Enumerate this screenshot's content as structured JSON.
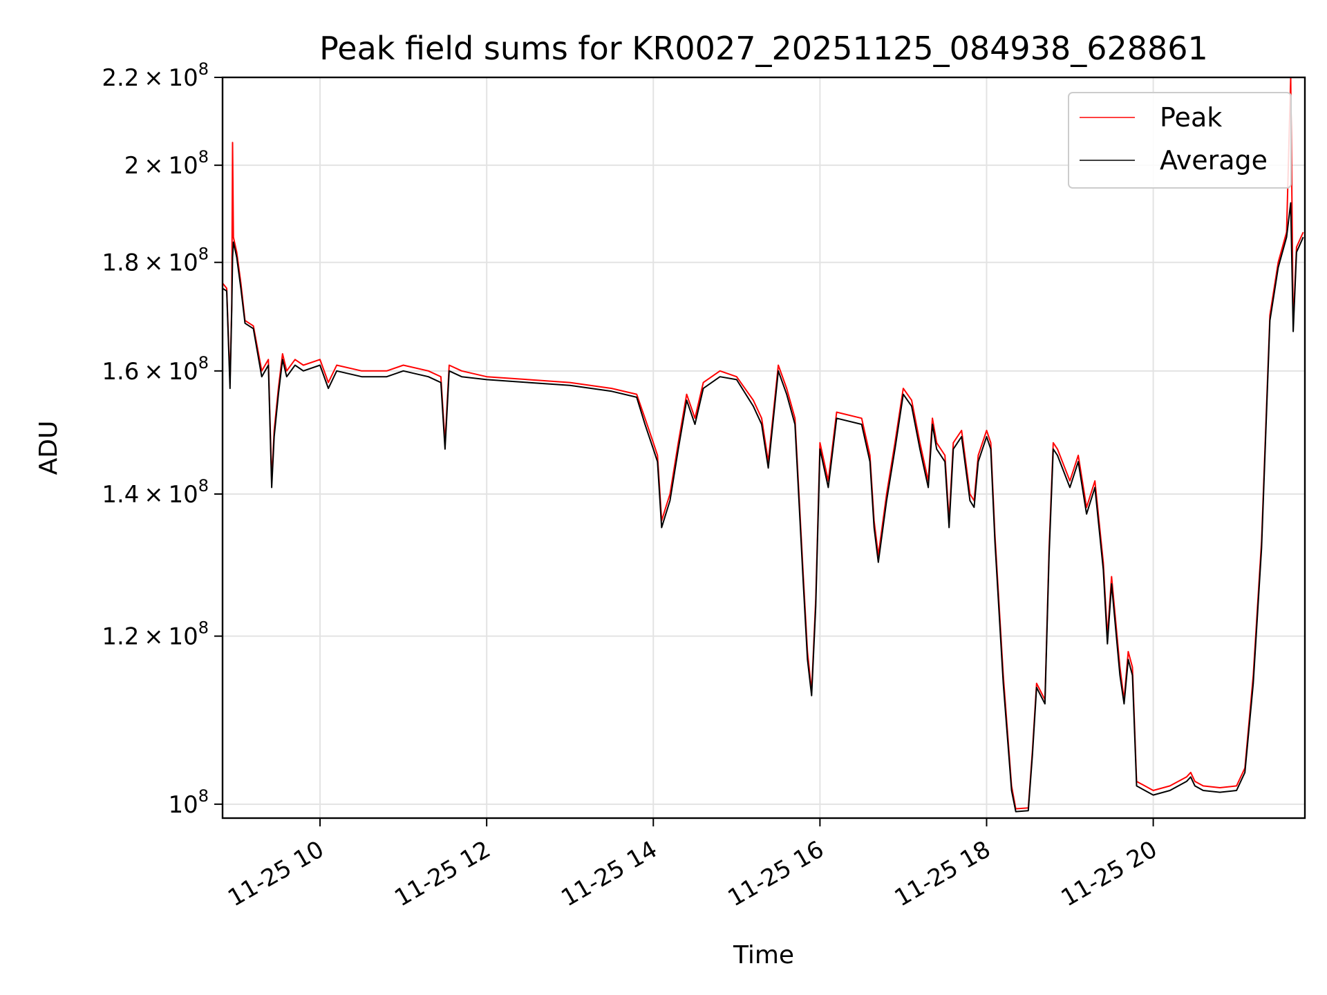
{
  "chart_data": {
    "type": "line",
    "title": "Peak field sums for KR0027_20251125_084938_628861",
    "xlabel": "Time",
    "ylabel": "ADU",
    "yscale": "log",
    "ylim": [
      98500000,
      220000000
    ],
    "xlim_hours": [
      8.83,
      21.82
    ],
    "grid": true,
    "legend_position": "top-right",
    "x_tick_values": [
      10,
      12,
      14,
      16,
      18,
      20
    ],
    "x_tick_labels": [
      "11-25 10",
      "11-25 12",
      "11-25 14",
      "11-25 16",
      "11-25 18",
      "11-25 20"
    ],
    "y_ticks": [
      {
        "value": 100000000,
        "mantissa": "",
        "exponent": "8"
      },
      {
        "value": 120000000,
        "mantissa": "1.2",
        "exponent": "8"
      },
      {
        "value": 140000000,
        "mantissa": "1.4",
        "exponent": "8"
      },
      {
        "value": 160000000,
        "mantissa": "1.6",
        "exponent": "8"
      },
      {
        "value": 180000000,
        "mantissa": "1.8",
        "exponent": "8"
      },
      {
        "value": 200000000,
        "mantissa": "2",
        "exponent": "8"
      },
      {
        "value": 220000000,
        "mantissa": "2.2",
        "exponent": "8"
      }
    ],
    "x_hours": [
      8.83,
      8.88,
      8.92,
      8.94,
      8.95,
      8.96,
      9.0,
      9.05,
      9.1,
      9.2,
      9.3,
      9.38,
      9.42,
      9.45,
      9.5,
      9.55,
      9.6,
      9.7,
      9.8,
      10.0,
      10.1,
      10.2,
      10.5,
      10.8,
      11.0,
      11.3,
      11.45,
      11.5,
      11.55,
      11.7,
      12.0,
      12.5,
      13.0,
      13.5,
      13.8,
      13.9,
      14.0,
      14.05,
      14.1,
      14.15,
      14.2,
      14.3,
      14.4,
      14.5,
      14.6,
      14.8,
      15.0,
      15.2,
      15.3,
      15.38,
      15.5,
      15.6,
      15.7,
      15.8,
      15.85,
      15.9,
      15.95,
      16.0,
      16.1,
      16.2,
      16.5,
      16.6,
      16.65,
      16.7,
      16.8,
      16.9,
      17.0,
      17.1,
      17.2,
      17.3,
      17.35,
      17.4,
      17.5,
      17.55,
      17.6,
      17.7,
      17.8,
      17.85,
      17.9,
      18.0,
      18.05,
      18.1,
      18.2,
      18.3,
      18.35,
      18.5,
      18.55,
      18.6,
      18.7,
      18.75,
      18.8,
      18.85,
      19.0,
      19.1,
      19.2,
      19.3,
      19.4,
      19.45,
      19.5,
      19.6,
      19.65,
      19.7,
      19.75,
      19.8,
      19.9,
      20.0,
      20.2,
      20.4,
      20.45,
      20.5,
      20.6,
      20.8,
      21.0,
      21.1,
      21.2,
      21.3,
      21.4,
      21.5,
      21.6,
      21.65,
      21.68,
      21.72,
      21.8
    ],
    "series": [
      {
        "name": "Peak",
        "color": "#ff0000",
        "values": [
          176000000,
          175000000,
          158000000,
          172000000,
          205000000,
          185000000,
          182000000,
          176000000,
          169000000,
          168000000,
          160000000,
          162000000,
          142000000,
          150000000,
          157000000,
          163000000,
          160000000,
          162000000,
          161000000,
          162000000,
          158000000,
          161000000,
          160000000,
          160000000,
          161000000,
          160000000,
          159000000,
          148000000,
          161000000,
          160000000,
          159000000,
          158500000,
          158000000,
          157000000,
          156000000,
          152000000,
          148000000,
          146000000,
          136000000,
          138000000,
          140000000,
          148000000,
          156000000,
          152000000,
          158000000,
          160000000,
          159000000,
          155000000,
          152000000,
          145000000,
          161000000,
          157000000,
          152000000,
          128000000,
          118000000,
          113000000,
          125000000,
          148000000,
          142000000,
          153000000,
          152000000,
          146000000,
          136000000,
          131000000,
          140000000,
          148000000,
          157000000,
          155000000,
          148000000,
          142000000,
          152000000,
          148000000,
          146000000,
          136000000,
          148000000,
          150000000,
          140000000,
          139000000,
          146000000,
          150000000,
          148000000,
          134000000,
          115000000,
          102000000,
          99500000,
          99600000,
          106000000,
          114000000,
          112000000,
          132000000,
          148000000,
          147000000,
          142000000,
          146000000,
          138000000,
          142000000,
          130000000,
          120000000,
          128000000,
          116000000,
          112000000,
          118000000,
          116000000,
          102500000,
          102000000,
          101500000,
          102000000,
          103000000,
          103500000,
          102500000,
          102000000,
          101800000,
          102000000,
          104000000,
          115000000,
          133000000,
          170000000,
          180000000,
          186000000,
          220000000,
          168000000,
          183000000,
          186000000
        ]
      },
      {
        "name": "Average",
        "color": "#000000",
        "values": [
          175000000,
          174500000,
          157000000,
          171000000,
          181000000,
          184000000,
          181000000,
          175000000,
          168500000,
          167500000,
          159000000,
          161000000,
          141000000,
          149000000,
          156000000,
          162000000,
          159000000,
          161000000,
          160000000,
          161000000,
          157000000,
          160000000,
          159000000,
          159000000,
          160000000,
          159000000,
          158000000,
          147000000,
          160000000,
          159000000,
          158500000,
          158000000,
          157500000,
          156500000,
          155500000,
          151000000,
          147000000,
          145000000,
          135000000,
          137000000,
          139000000,
          147000000,
          155000000,
          151000000,
          157000000,
          159000000,
          158500000,
          154000000,
          151000000,
          144000000,
          160000000,
          156000000,
          151000000,
          127000000,
          117000000,
          112500000,
          124000000,
          147000000,
          141000000,
          152000000,
          151000000,
          145000000,
          135000000,
          130000000,
          139000000,
          147000000,
          156000000,
          154000000,
          147000000,
          141000000,
          151000000,
          147000000,
          145000000,
          135000000,
          147000000,
          149000000,
          139000000,
          138000000,
          145000000,
          149000000,
          147000000,
          133000000,
          114000000,
          101500000,
          99200000,
          99300000,
          105500000,
          113500000,
          111500000,
          131000000,
          147000000,
          146000000,
          141000000,
          145000000,
          137000000,
          141000000,
          129000000,
          119000000,
          127000000,
          115000000,
          111500000,
          117000000,
          115000000,
          102000000,
          101500000,
          101000000,
          101500000,
          102500000,
          103000000,
          102000000,
          101500000,
          101300000,
          101500000,
          103500000,
          114000000,
          132000000,
          169000000,
          179000000,
          185000000,
          192000000,
          167000000,
          182000000,
          185000000
        ]
      }
    ]
  }
}
